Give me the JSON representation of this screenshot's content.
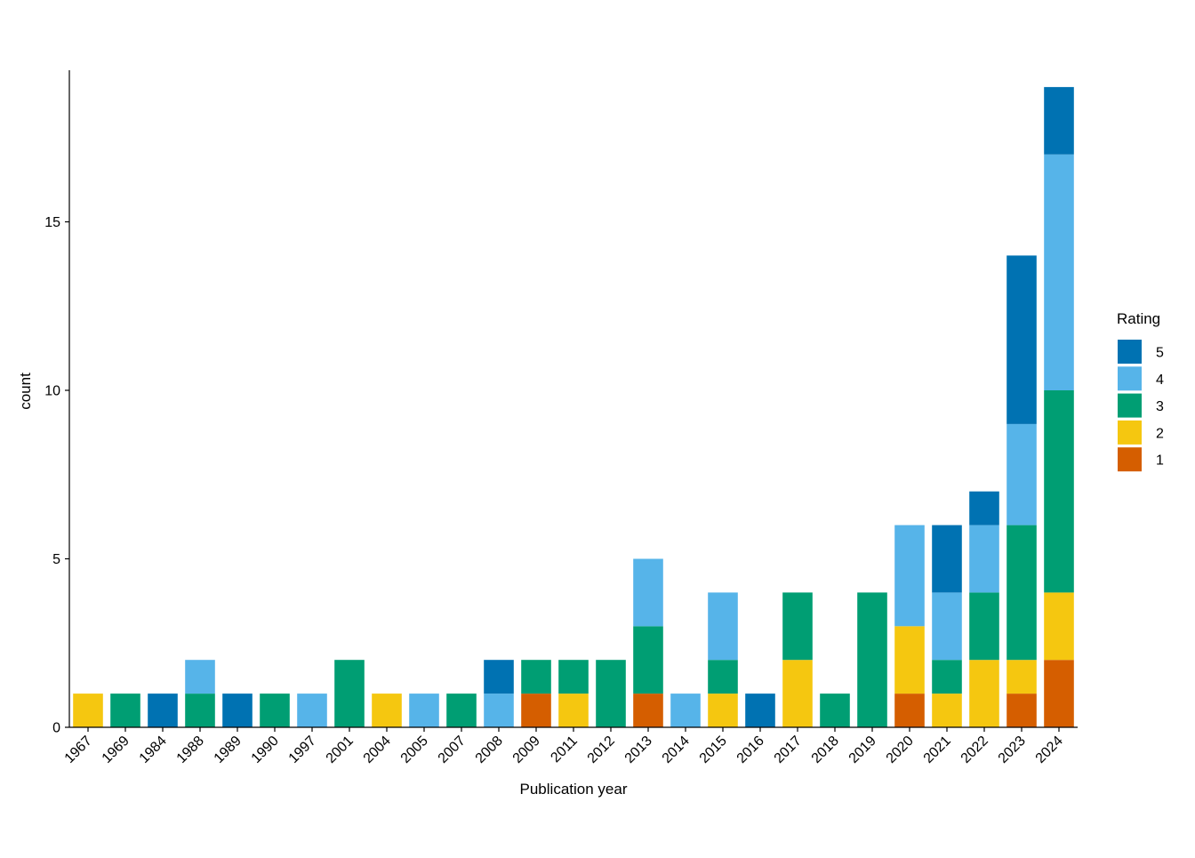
{
  "chart_data": {
    "type": "bar",
    "stacked": true,
    "title": "",
    "xlabel": "Publication year",
    "ylabel": "count",
    "ylim": [
      0,
      19.5
    ],
    "yticks": [
      0,
      5,
      10,
      15
    ],
    "grid": false,
    "legend_position": "right",
    "legend_title": "Rating",
    "categories": [
      "1967",
      "1969",
      "1984",
      "1988",
      "1989",
      "1990",
      "1997",
      "2001",
      "2004",
      "2005",
      "2007",
      "2008",
      "2009",
      "2011",
      "2012",
      "2013",
      "2014",
      "2015",
      "2016",
      "2017",
      "2018",
      "2019",
      "2020",
      "2021",
      "2022",
      "2023",
      "2024"
    ],
    "series": [
      {
        "name": "1",
        "color": "#D55E00",
        "values": [
          0,
          0,
          0,
          0,
          0,
          0,
          0,
          0,
          0,
          0,
          0,
          0,
          1,
          0,
          0,
          1,
          0,
          0,
          0,
          0,
          0,
          0,
          1,
          0,
          0,
          1,
          2
        ]
      },
      {
        "name": "2",
        "color": "#F5C710",
        "values": [
          1,
          0,
          0,
          0,
          0,
          0,
          0,
          0,
          1,
          0,
          0,
          0,
          0,
          1,
          0,
          0,
          0,
          1,
          0,
          2,
          0,
          0,
          2,
          1,
          2,
          1,
          2
        ]
      },
      {
        "name": "3",
        "color": "#009E73",
        "values": [
          0,
          1,
          0,
          1,
          0,
          1,
          0,
          2,
          0,
          0,
          1,
          0,
          1,
          1,
          2,
          2,
          0,
          1,
          0,
          2,
          1,
          4,
          0,
          1,
          2,
          4,
          6
        ]
      },
      {
        "name": "4",
        "color": "#56B4E9",
        "values": [
          0,
          0,
          0,
          1,
          0,
          0,
          1,
          0,
          0,
          1,
          0,
          1,
          0,
          0,
          0,
          2,
          1,
          2,
          0,
          0,
          0,
          0,
          3,
          2,
          2,
          3,
          7
        ]
      },
      {
        "name": "5",
        "color": "#0072B2",
        "values": [
          0,
          0,
          1,
          0,
          1,
          0,
          0,
          0,
          0,
          0,
          0,
          1,
          0,
          0,
          0,
          0,
          0,
          0,
          1,
          0,
          0,
          0,
          0,
          2,
          1,
          5,
          2
        ]
      }
    ],
    "legend_order": [
      "5",
      "4",
      "3",
      "2",
      "1"
    ]
  }
}
